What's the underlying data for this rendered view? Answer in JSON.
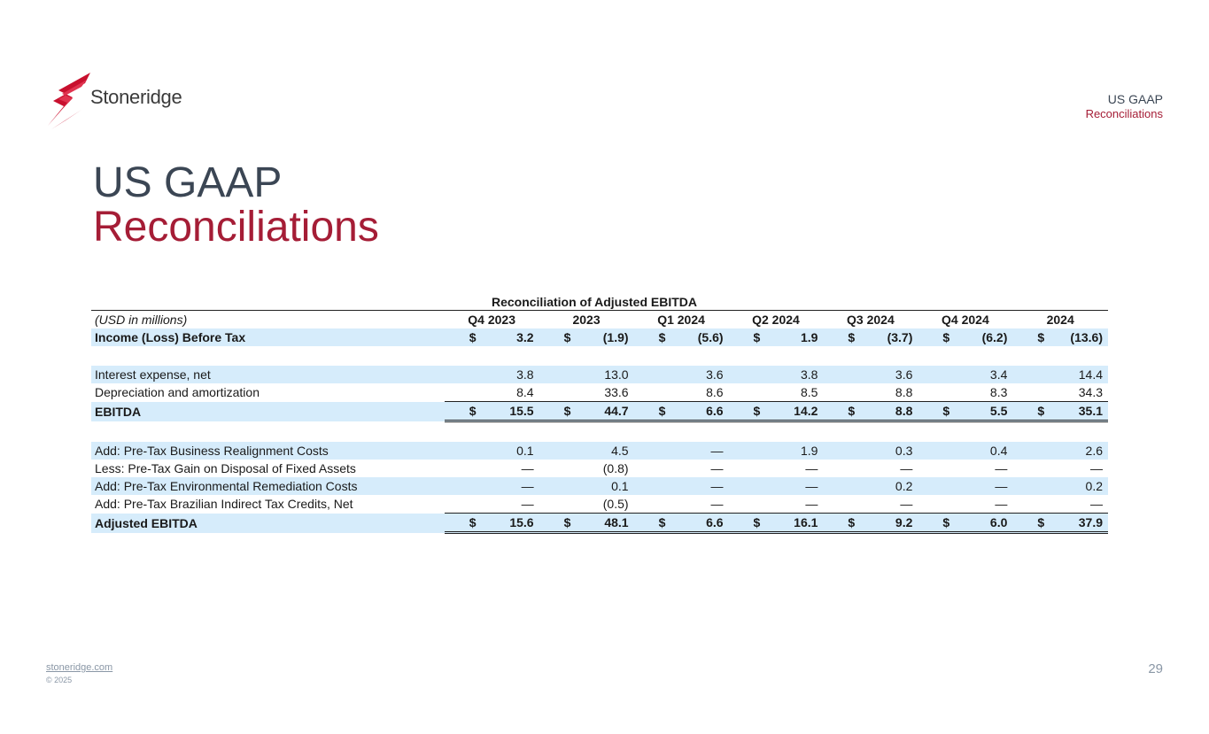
{
  "brand": {
    "name": "Stoneridge",
    "website": "stoneridge.com",
    "copyright": "© 2025"
  },
  "corner": {
    "line1": "US GAAP",
    "line2": "Reconciliations"
  },
  "title": {
    "line1": "US GAAP",
    "line2": "Reconciliations"
  },
  "page_number": "29",
  "colors": {
    "accent": "#a51d36",
    "slate": "#3b4654",
    "row_shade": "#d6ecfb"
  },
  "table": {
    "title": "Reconciliation of Adjusted EBITDA",
    "units_label": "(USD in millions)",
    "columns": [
      "Q4 2023",
      "2023",
      "Q1 2024",
      "Q2 2024",
      "Q3 2024",
      "Q4 2024",
      "2024"
    ],
    "rows": [
      {
        "label": "Income (Loss) Before Tax",
        "values": [
          "3.2",
          "(1.9)",
          "(5.6)",
          "1.9",
          "(3.7)",
          "(6.2)",
          "(13.6)"
        ],
        "dollar": "$"
      },
      {
        "label": "Interest expense, net",
        "values": [
          "3.8",
          "13.0",
          "3.6",
          "3.8",
          "3.6",
          "3.4",
          "14.4"
        ]
      },
      {
        "label": "Depreciation and amortization",
        "values": [
          "8.4",
          "33.6",
          "8.6",
          "8.5",
          "8.8",
          "8.3",
          "34.3"
        ]
      },
      {
        "label": "EBITDA",
        "values": [
          "15.5",
          "44.7",
          "6.6",
          "14.2",
          "8.8",
          "5.5",
          "35.1"
        ],
        "dollar": "$"
      },
      {
        "label": "Add: Pre-Tax Business Realignment Costs",
        "values": [
          "0.1",
          "4.5",
          "—",
          "1.9",
          "0.3",
          "0.4",
          "2.6"
        ]
      },
      {
        "label": "Less: Pre-Tax Gain on Disposal of Fixed Assets",
        "values": [
          "—",
          "(0.8)",
          "—",
          "—",
          "—",
          "—",
          "—"
        ]
      },
      {
        "label": "Add: Pre-Tax Environmental Remediation Costs",
        "values": [
          "—",
          "0.1",
          "—",
          "—",
          "0.2",
          "—",
          "0.2"
        ]
      },
      {
        "label": "Add: Pre-Tax Brazilian Indirect Tax Credits, Net",
        "values": [
          "—",
          "(0.5)",
          "—",
          "—",
          "—",
          "—",
          "—"
        ]
      },
      {
        "label": "Adjusted EBITDA",
        "values": [
          "15.6",
          "48.1",
          "6.6",
          "16.1",
          "9.2",
          "6.0",
          "37.9"
        ],
        "dollar": "$"
      }
    ]
  }
}
